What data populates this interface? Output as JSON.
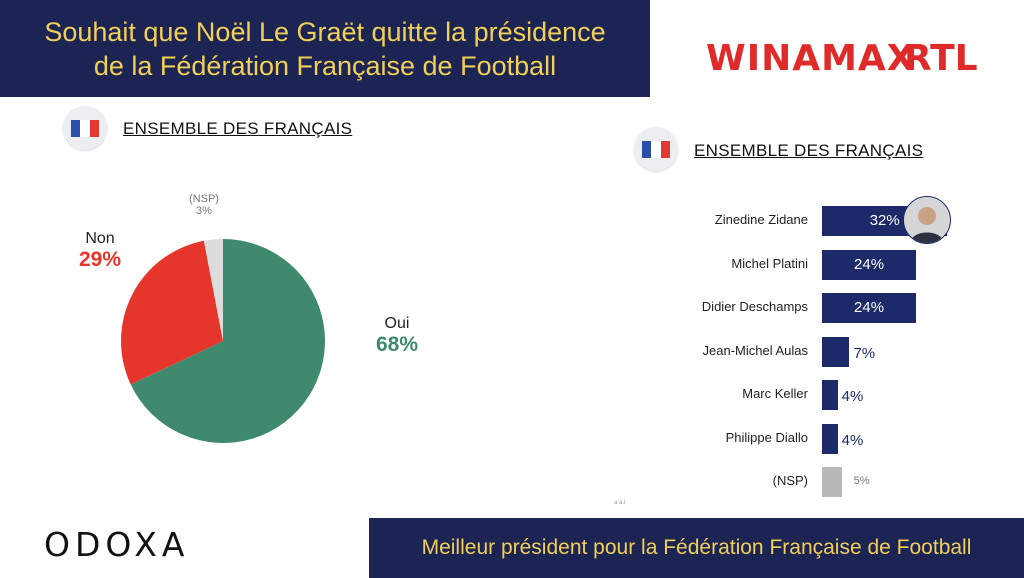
{
  "header": {
    "title_line1": "Souhait que Noël Le Graët quitte la présidence",
    "title_line2": "de la Fédération Française de Football"
  },
  "logos": {
    "winamax": "WINAMAX",
    "rtl": "RTL",
    "odoxa": "ODOXA"
  },
  "colors": {
    "navy": "#1b2452",
    "gold": "#f2cf57",
    "green": "#3f8a6d",
    "red": "#e6352b",
    "grey": "#dcdcdc",
    "bar": "#1c2a6a"
  },
  "left_panel": {
    "section_title": "ENSEMBLE DES FRANÇAIS"
  },
  "right_panel": {
    "section_title": "ENSEMBLE DES FRANÇAIS"
  },
  "footer": {
    "caption": "Meilleur président pour la Fédération Française de Football",
    "tiny_mark": "a a.l"
  },
  "chart_data": [
    {
      "type": "pie",
      "title": "Souhait que Noël Le Graët quitte la présidence de la Fédération Française de Football",
      "subtitle": "ENSEMBLE DES FRANÇAIS",
      "slices": [
        {
          "label": "Oui",
          "value": 68,
          "display": "68%",
          "color": "#3f8a6d"
        },
        {
          "label": "Non",
          "value": 29,
          "display": "29%",
          "color": "#e6352b"
        },
        {
          "label": "(NSP)",
          "value": 3,
          "display": "3%",
          "color": "#dcdcdc"
        }
      ]
    },
    {
      "type": "bar",
      "orientation": "horizontal",
      "title": "Meilleur président pour la Fédération Française de Football",
      "subtitle": "ENSEMBLE DES FRANÇAIS",
      "categories": [
        "Zinedine Zidane",
        "Michel Platini",
        "Didier Deschamps",
        "Jean-Michel Aulas",
        "Marc Keller",
        "Philippe Diallo",
        "(NSP)"
      ],
      "values": [
        32,
        24,
        24,
        7,
        4,
        4,
        5
      ],
      "labels": [
        "32%",
        "24%",
        "24%",
        "7%",
        "4%",
        "4%",
        "5%"
      ],
      "bar_colors": [
        "#1c2a6a",
        "#1c2a6a",
        "#1c2a6a",
        "#1c2a6a",
        "#1c2a6a",
        "#1c2a6a",
        "#b8b8b8"
      ]
    }
  ]
}
